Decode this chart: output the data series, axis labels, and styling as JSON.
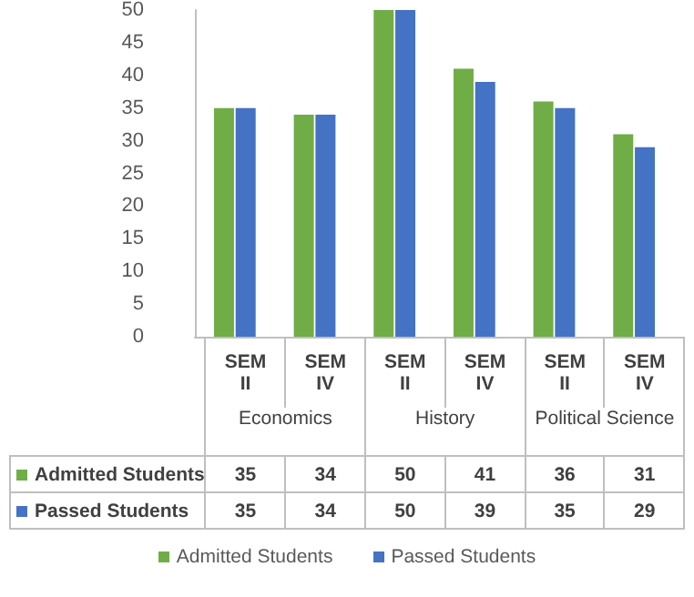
{
  "chart_data": {
    "type": "bar",
    "categories": [
      "SEM II",
      "SEM IV",
      "SEM II",
      "SEM IV",
      "SEM II",
      "SEM IV"
    ],
    "annotations": [
      "Economics",
      "History",
      "Political Science"
    ],
    "series": [
      {
        "name": "Admitted Students",
        "color": "#70ad47",
        "values": [
          35,
          34,
          50,
          41,
          36,
          31
        ]
      },
      {
        "name": "Passed Students",
        "color": "#4472c4",
        "values": [
          35,
          34,
          50,
          39,
          35,
          29
        ]
      }
    ],
    "ylim": [
      0,
      50
    ],
    "yticks": [
      0,
      5,
      10,
      15,
      20,
      25,
      30,
      35,
      40,
      45,
      50
    ],
    "grid": false,
    "data_labels": true,
    "legend": "bottom"
  }
}
